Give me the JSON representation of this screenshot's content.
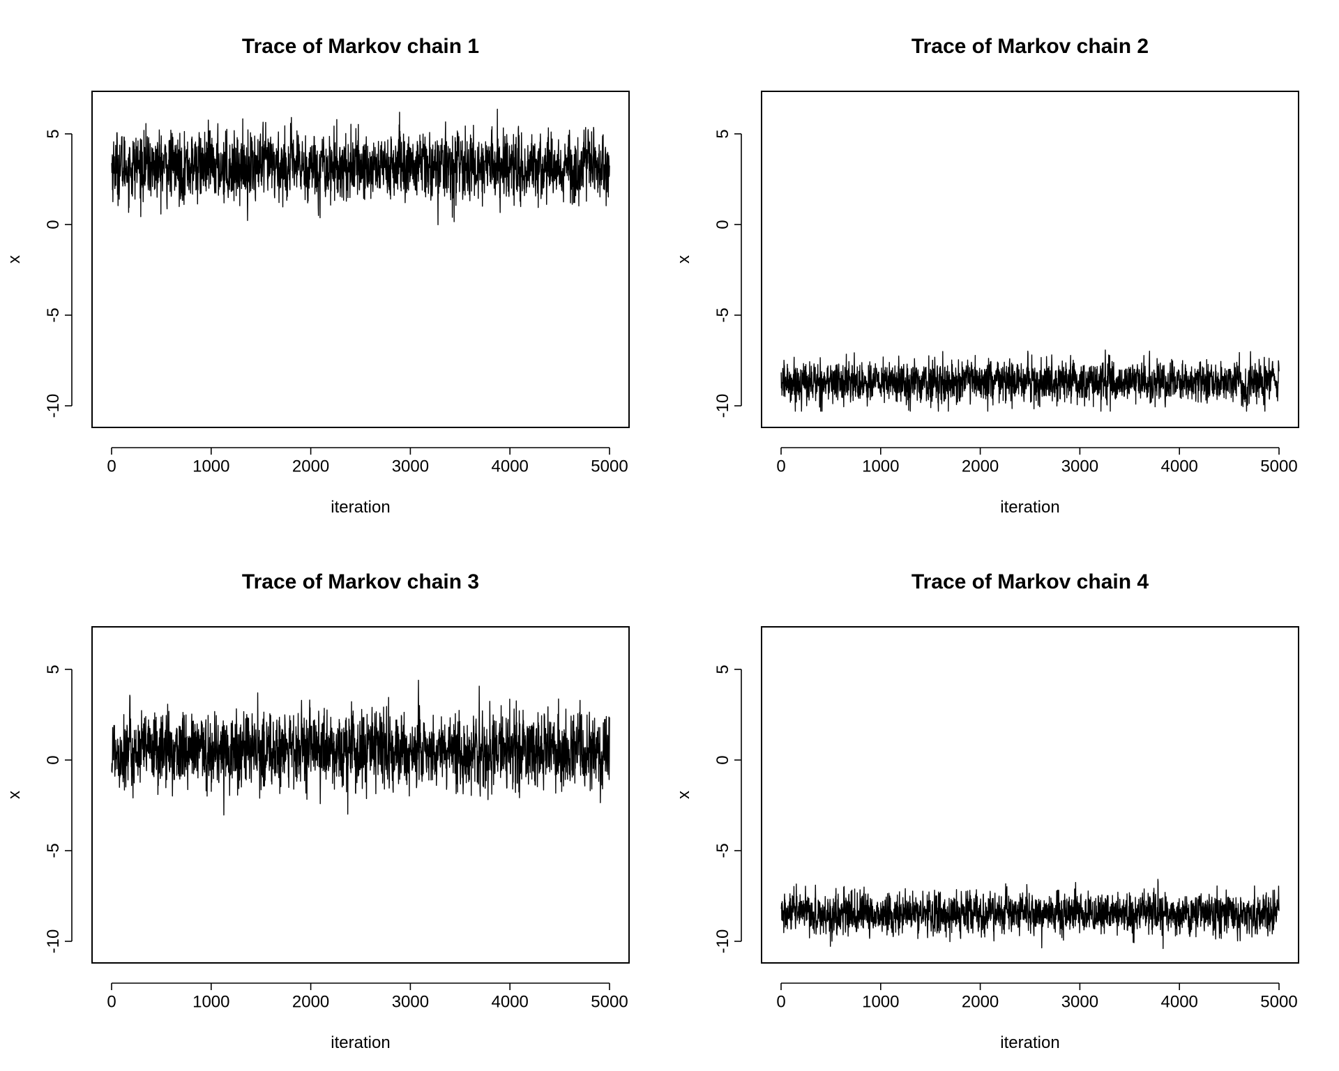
{
  "chart_data": [
    {
      "type": "line",
      "title": "Trace of Markov chain 1",
      "xlabel": "iteration",
      "ylabel": "x",
      "xlim": [
        0,
        5000
      ],
      "ylim": [
        -11,
        7
      ],
      "xticks": [
        "0",
        "1000",
        "2000",
        "3000",
        "4000",
        "5000"
      ],
      "yticks": [
        "-10",
        "-5",
        "0",
        "5"
      ],
      "grid": false,
      "series": [
        {
          "x_start": 1,
          "x_end": 5000,
          "mean": 3.2,
          "sd": 0.9,
          "min": -0.8,
          "max": 6.6
        }
      ]
    },
    {
      "type": "line",
      "title": "Trace of Markov chain 2",
      "xlabel": "iteration",
      "ylabel": "x",
      "xlim": [
        0,
        5000
      ],
      "ylim": [
        -11,
        7
      ],
      "xticks": [
        "0",
        "1000",
        "2000",
        "3000",
        "4000",
        "5000"
      ],
      "yticks": [
        "-10",
        "-5",
        "0",
        "5"
      ],
      "grid": false,
      "series": [
        {
          "x_start": 1,
          "x_end": 5000,
          "mean": -8.7,
          "sd": 0.55,
          "min": -10.3,
          "max": -6.0
        }
      ]
    },
    {
      "type": "line",
      "title": "Trace of Markov chain 3",
      "xlabel": "iteration",
      "ylabel": "x",
      "xlim": [
        0,
        5000
      ],
      "ylim": [
        -11,
        7
      ],
      "xticks": [
        "0",
        "1000",
        "2000",
        "3000",
        "4000",
        "5000"
      ],
      "yticks": [
        "-10",
        "-5",
        "0",
        "5"
      ],
      "grid": false,
      "series": [
        {
          "x_start": 1,
          "x_end": 5000,
          "mean": 0.5,
          "sd": 1.0,
          "min": -3.3,
          "max": 4.4
        }
      ]
    },
    {
      "type": "line",
      "title": "Trace of Markov chain 4",
      "xlabel": "iteration",
      "ylabel": "x",
      "xlim": [
        0,
        5000
      ],
      "ylim": [
        -11,
        7
      ],
      "xticks": [
        "0",
        "1000",
        "2000",
        "3000",
        "4000",
        "5000"
      ],
      "yticks": [
        "-10",
        "-5",
        "0",
        "5"
      ],
      "grid": false,
      "series": [
        {
          "x_start": 1,
          "x_end": 5000,
          "mean": -8.5,
          "sd": 0.55,
          "min": -10.4,
          "max": -5.5
        }
      ]
    }
  ]
}
